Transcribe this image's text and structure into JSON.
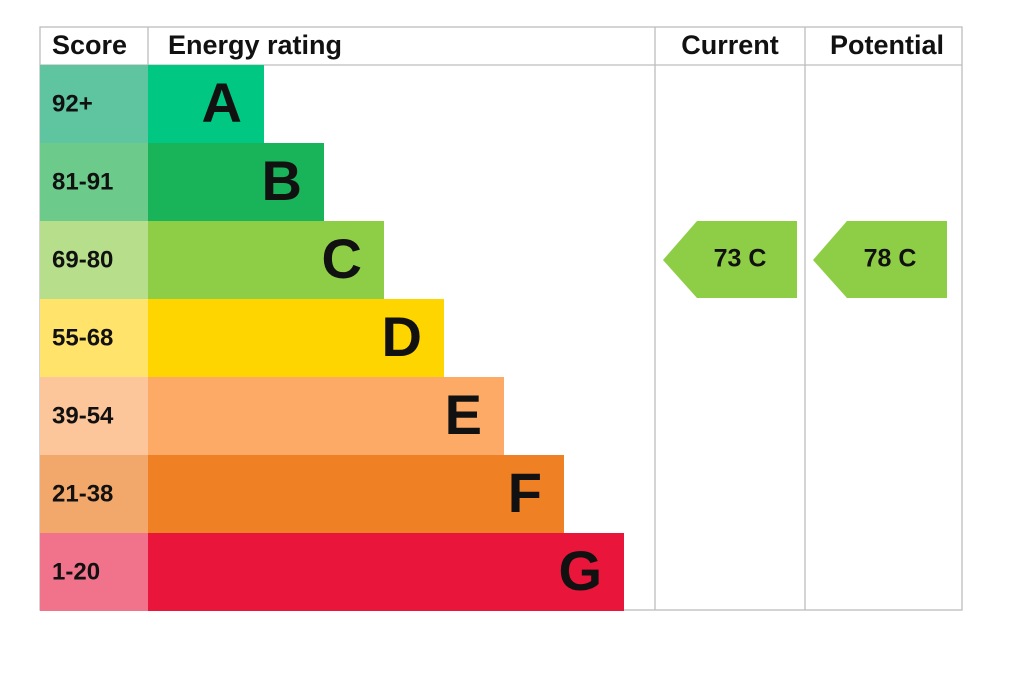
{
  "header": {
    "score": "Score",
    "rating": "Energy rating",
    "current": "Current",
    "potential": "Potential"
  },
  "rows": [
    {
      "score": "92+",
      "letter": "A"
    },
    {
      "score": "81-91",
      "letter": "B"
    },
    {
      "score": "69-80",
      "letter": "C"
    },
    {
      "score": "55-68",
      "letter": "D"
    },
    {
      "score": "39-54",
      "letter": "E"
    },
    {
      "score": "21-38",
      "letter": "F"
    },
    {
      "score": "1-20",
      "letter": "G"
    }
  ],
  "current": "73 C",
  "potential": "78 C"
}
